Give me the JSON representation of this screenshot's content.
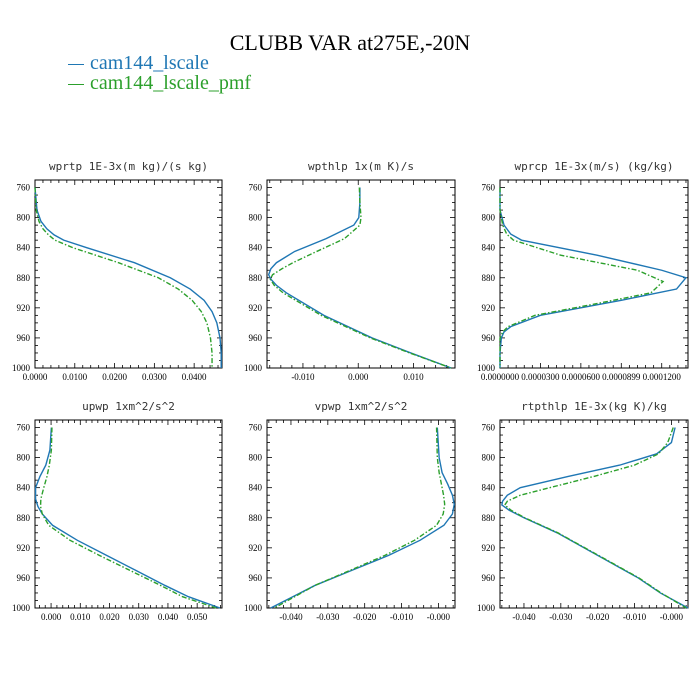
{
  "title": "CLUBB VAR at275E,-20N",
  "colors": {
    "series1": "#1f77b4",
    "series2": "#2ca02c"
  },
  "legend": [
    {
      "name": "cam144_lscale",
      "color": "#1f77b4"
    },
    {
      "name": "cam144_lscale_pmf",
      "color": "#2ca02c"
    }
  ],
  "chart_data": [
    {
      "type": "line",
      "title": "wprtp  1E-3x(m kg)/(s kg)",
      "xlim": [
        0.0,
        0.047
      ],
      "ylim": [
        1000,
        750
      ],
      "yticks": [
        760,
        800,
        840,
        880,
        920,
        960,
        1000
      ],
      "xticks": [
        0.0,
        0.01,
        0.02,
        0.03,
        0.04
      ],
      "xticklabels": [
        "0.0000",
        "0.0100",
        "0.0200",
        "0.0300",
        "0.0400"
      ],
      "series": [
        {
          "name": "cam144_lscale",
          "y": [
            760,
            790,
            805,
            815,
            823,
            830,
            840,
            860,
            880,
            895,
            910,
            925,
            940,
            960,
            980,
            1000
          ],
          "x": [
            0.0,
            0.0005,
            0.0015,
            0.003,
            0.0048,
            0.0072,
            0.013,
            0.025,
            0.034,
            0.039,
            0.0425,
            0.0445,
            0.0457,
            0.0465,
            0.0468,
            0.0468
          ]
        },
        {
          "name": "cam144_lscale_pmf",
          "y": [
            760,
            790,
            805,
            815,
            823,
            830,
            840,
            860,
            880,
            895,
            910,
            925,
            940,
            960,
            980,
            1000
          ],
          "x": [
            0.0,
            0.0003,
            0.001,
            0.002,
            0.0034,
            0.005,
            0.0095,
            0.021,
            0.031,
            0.036,
            0.0395,
            0.0418,
            0.0432,
            0.0441,
            0.0445,
            0.0445
          ]
        }
      ]
    },
    {
      "type": "line",
      "title": "wpthlp  1x(m K)/s",
      "xlim": [
        -0.0165,
        0.0175
      ],
      "ylim": [
        1000,
        750
      ],
      "yticks": [
        760,
        800,
        840,
        880,
        920,
        960,
        1000
      ],
      "xticks": [
        -0.01,
        0.0,
        0.01
      ],
      "xticklabels": [
        "-0.010",
        "0.000",
        "0.010"
      ],
      "series": [
        {
          "name": "cam144_lscale",
          "y": [
            760,
            780,
            800,
            810,
            828,
            845,
            860,
            868,
            876,
            882,
            890,
            900,
            930,
            960,
            980,
            1000
          ],
          "x": [
            0.0003,
            0.0003,
            0.0001,
            -0.0008,
            -0.0058,
            -0.0115,
            -0.0148,
            -0.0158,
            -0.0162,
            -0.0158,
            -0.0148,
            -0.013,
            -0.0062,
            0.0025,
            0.0095,
            0.0168
          ]
        },
        {
          "name": "cam144_lscale_pmf",
          "y": [
            760,
            780,
            800,
            810,
            828,
            845,
            860,
            868,
            876,
            882,
            890,
            900,
            930,
            960,
            980,
            1000
          ],
          "x": [
            0.0002,
            0.0003,
            0.0005,
            0.0003,
            -0.0025,
            -0.0075,
            -0.0118,
            -0.0138,
            -0.0155,
            -0.0159,
            -0.0152,
            -0.0136,
            -0.0067,
            0.0022,
            0.0093,
            0.0168
          ]
        }
      ]
    },
    {
      "type": "line",
      "title": "wprcp  1E-3x(m/s) (kg/kg)",
      "xlim": [
        0.0,
        0.0001395
      ],
      "ylim": [
        1000,
        750
      ],
      "yticks": [
        760,
        800,
        840,
        880,
        920,
        960,
        1000
      ],
      "xticks": [
        0.0,
        3e-05,
        6e-05,
        9e-05,
        0.00012
      ],
      "xticklabels": [
        "0.0000000",
        "0.0000300",
        "0.0000600",
        "0.0000899",
        "0.0001200"
      ],
      "series": [
        {
          "name": "cam144_lscale",
          "y": [
            760,
            790,
            810,
            822,
            830,
            850,
            870,
            880,
            895,
            910,
            930,
            945,
            952,
            960,
            980,
            1000
          ],
          "x": [
            0.0,
            0.0,
            3e-06,
            8e-06,
            1.6e-05,
            7.2e-05,
            0.00012,
            0.000138,
            0.000131,
            9e-05,
            3e-05,
            8e-06,
            3e-06,
            1e-06,
            0.0,
            0.0
          ]
        },
        {
          "name": "cam144_lscale_pmf",
          "y": [
            760,
            790,
            810,
            822,
            830,
            850,
            870,
            885,
            900,
            915,
            930,
            945,
            952,
            960,
            980,
            1000
          ],
          "x": [
            0.0,
            0.0,
            2e-06,
            5e-06,
            1e-05,
            4.5e-05,
            0.000102,
            0.000121,
            0.000112,
            7e-05,
            2.6e-05,
            6e-06,
            2e-06,
            0.0,
            0.0,
            0.0
          ]
        }
      ]
    },
    {
      "type": "line",
      "title": "upwp  1xm^2/s^2",
      "xlim": [
        -0.0055,
        0.0585
      ],
      "ylim": [
        1000,
        750
      ],
      "yticks": [
        760,
        800,
        840,
        880,
        920,
        960,
        1000
      ],
      "xticks": [
        0.0,
        0.01,
        0.02,
        0.03,
        0.04,
        0.05
      ],
      "xticklabels": [
        "0.000",
        "0.010",
        "0.020",
        "0.030",
        "0.040",
        "0.050"
      ],
      "series": [
        {
          "name": "cam144_lscale",
          "y": [
            760,
            790,
            810,
            825,
            840,
            855,
            865,
            875,
            890,
            910,
            930,
            950,
            970,
            985,
            1000
          ],
          "x": [
            0.0001,
            -0.0004,
            -0.0018,
            -0.0038,
            -0.0053,
            -0.0053,
            -0.0045,
            -0.003,
            0.0005,
            0.009,
            0.019,
            0.029,
            0.039,
            0.047,
            0.0578
          ]
        },
        {
          "name": "cam144_lscale_pmf",
          "y": [
            760,
            790,
            810,
            825,
            840,
            855,
            865,
            875,
            890,
            910,
            930,
            950,
            970,
            985,
            1000
          ],
          "x": [
            0.0003,
            0.0001,
            -0.0006,
            -0.0014,
            -0.0025,
            -0.0035,
            -0.0036,
            -0.003,
            -0.0008,
            0.0065,
            0.0165,
            0.027,
            0.0375,
            0.045,
            0.0565
          ]
        }
      ]
    },
    {
      "type": "line",
      "title": "vpwp  1xm^2/s^2",
      "xlim": [
        -0.0465,
        0.0045
      ],
      "ylim": [
        1000,
        750
      ],
      "yticks": [
        760,
        800,
        840,
        880,
        920,
        960,
        1000
      ],
      "xticks": [
        -0.04,
        -0.03,
        -0.02,
        -0.01,
        0.0
      ],
      "xticklabels": [
        "-0.040",
        "-0.030",
        "-0.020",
        "-0.010",
        "-0.000"
      ],
      "series": [
        {
          "name": "cam144_lscale",
          "y": [
            760,
            800,
            820,
            835,
            850,
            862,
            875,
            890,
            910,
            930,
            950,
            970,
            985,
            1000
          ],
          "x": [
            -0.0003,
            0.0002,
            0.001,
            0.0025,
            0.0038,
            0.0043,
            0.0038,
            0.0015,
            -0.005,
            -0.0135,
            -0.0235,
            -0.0335,
            -0.0395,
            -0.0455
          ]
        },
        {
          "name": "cam144_lscale_pmf",
          "y": [
            760,
            800,
            820,
            835,
            850,
            862,
            875,
            890,
            910,
            930,
            950,
            970,
            985,
            1000
          ],
          "x": [
            -0.0005,
            -0.0003,
            0.0002,
            0.0008,
            0.0014,
            0.0017,
            0.0013,
            -0.0005,
            -0.0065,
            -0.0145,
            -0.024,
            -0.0335,
            -0.039,
            -0.0445
          ]
        }
      ]
    },
    {
      "type": "line",
      "title": "rtpthlp  1E-3x(kg K)/kg",
      "xlim": [
        -0.0465,
        0.0045
      ],
      "ylim": [
        1000,
        750
      ],
      "yticks": [
        760,
        800,
        840,
        880,
        920,
        960,
        1000
      ],
      "xticks": [
        -0.04,
        -0.03,
        -0.02,
        -0.01,
        0.0
      ],
      "xticklabels": [
        "-0.040",
        "-0.030",
        "-0.020",
        "-0.010",
        "-0.000"
      ],
      "series": [
        {
          "name": "cam144_lscale",
          "y": [
            760,
            780,
            795,
            810,
            825,
            840,
            850,
            858,
            863,
            870,
            880,
            900,
            930,
            960,
            980,
            1000
          ],
          "x": [
            0.001,
            0.0,
            -0.004,
            -0.014,
            -0.028,
            -0.041,
            -0.0445,
            -0.0458,
            -0.046,
            -0.044,
            -0.04,
            -0.031,
            -0.02,
            -0.009,
            -0.003,
            0.0045
          ]
        },
        {
          "name": "cam144_lscale_pmf",
          "y": [
            760,
            780,
            795,
            810,
            825,
            840,
            850,
            858,
            863,
            870,
            880,
            900,
            930,
            960,
            980,
            1000
          ],
          "x": [
            0.0005,
            -0.001,
            -0.0035,
            -0.01,
            -0.021,
            -0.033,
            -0.041,
            -0.0445,
            -0.0452,
            -0.0435,
            -0.0398,
            -0.0308,
            -0.0198,
            -0.0088,
            -0.0028,
            0.004
          ]
        }
      ]
    }
  ]
}
